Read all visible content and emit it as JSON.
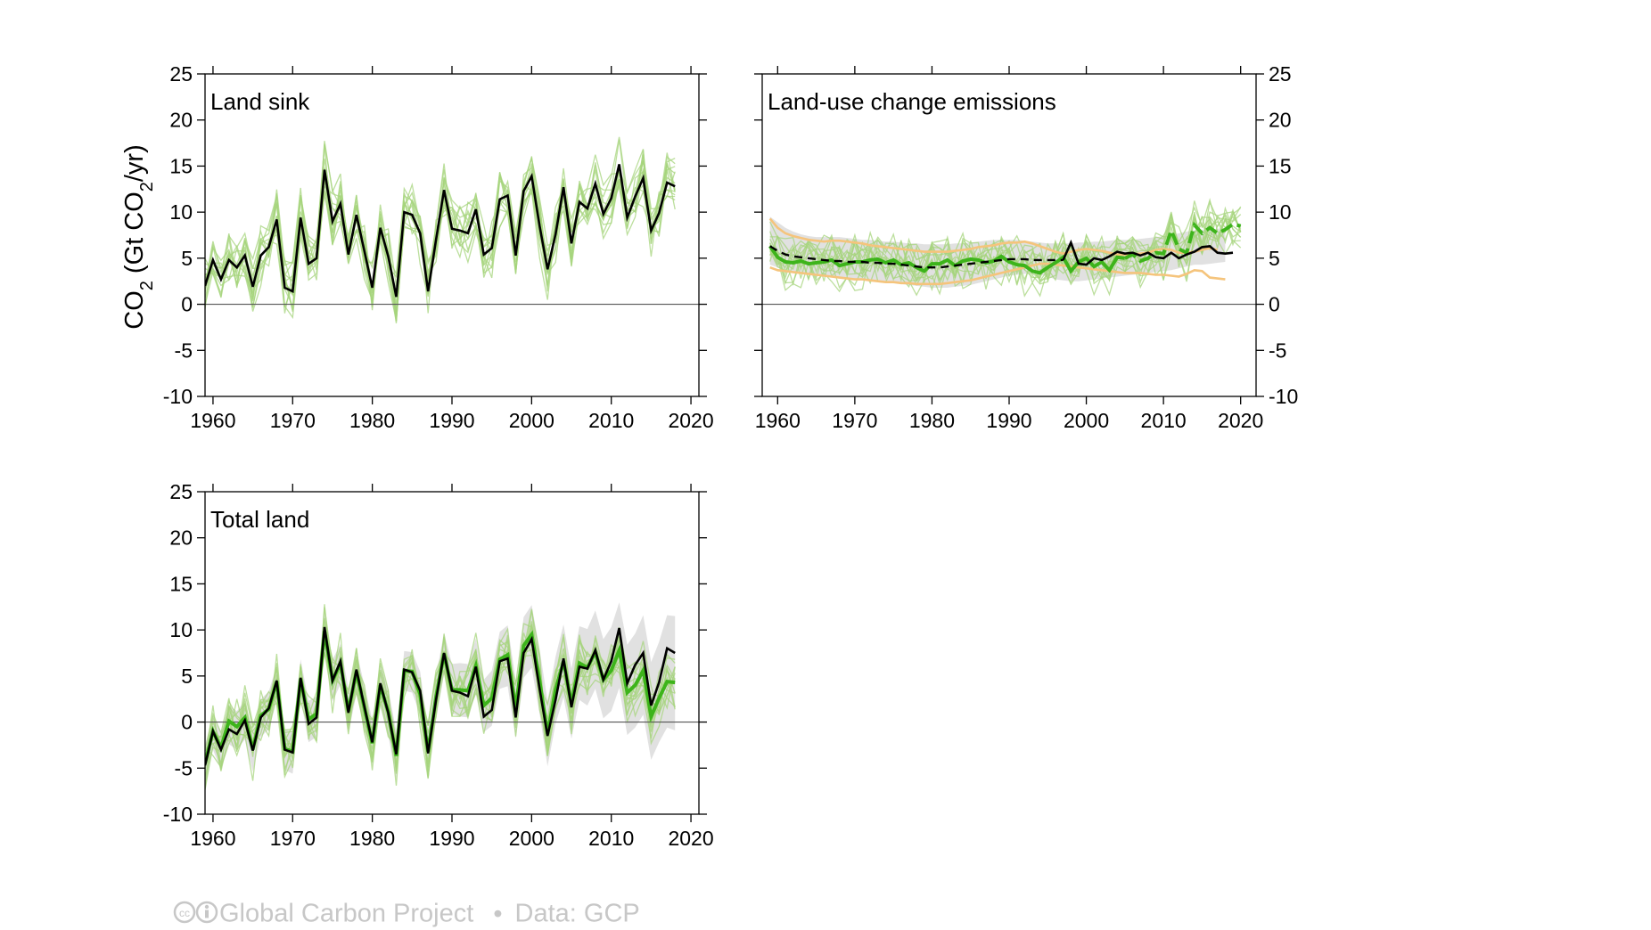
{
  "ylabel_parts": {
    "main": "CO",
    "sub": "2",
    "rest1": " (Gt CO",
    "sub2": "2",
    "rest2": "/yr)"
  },
  "footer": {
    "source": "Global Carbon Project",
    "separator": "•",
    "data": "Data: GCP"
  },
  "colors": {
    "mean": "#000000",
    "green_strong": "#3db41b",
    "green_light": "#a6d47c",
    "orange": "#f5c47c",
    "band": "#dcdcdc"
  },
  "chart_data": [
    {
      "id": "land-sink",
      "type": "line",
      "title": "Land sink",
      "ylim": [
        -10,
        25
      ],
      "xlim": [
        1959,
        2021
      ],
      "yticks": [
        -10,
        -5,
        0,
        5,
        10,
        15,
        20,
        25
      ],
      "xticks": [
        1960,
        1970,
        1980,
        1990,
        2000,
        2010,
        2020
      ],
      "yaxis_side": "left",
      "x_start": 1959,
      "series": [
        {
          "role": "mean",
          "values": [
            2.0,
            4.8,
            2.7,
            4.8,
            4.0,
            5.3,
            1.9,
            5.3,
            6.2,
            9.2,
            1.8,
            1.4,
            9.4,
            4.4,
            5.0,
            14.6,
            9.0,
            10.9,
            5.4,
            9.7,
            5.8,
            1.8,
            8.3,
            5.2,
            0.8,
            10.0,
            9.7,
            7.7,
            1.4,
            7.0,
            12.4,
            8.2,
            8.0,
            7.7,
            10.3,
            5.4,
            6.1,
            11.4,
            11.8,
            5.3,
            12.3,
            13.9,
            8.5,
            3.8,
            7.6,
            12.7,
            6.6,
            11.1,
            10.4,
            13.1,
            9.8,
            11.5,
            15.2,
            9.4,
            11.7,
            13.7,
            8.0,
            9.9,
            13.2,
            12.8
          ]
        }
      ]
    },
    {
      "id": "land-use-change",
      "type": "line",
      "title": "Land-use change emissions",
      "ylim": [
        -10,
        25
      ],
      "xlim": [
        1958,
        2022
      ],
      "yticks": [
        -10,
        -5,
        0,
        5,
        10,
        15,
        20,
        25
      ],
      "xticks": [
        1960,
        1970,
        1980,
        1990,
        2000,
        2010,
        2020
      ],
      "yaxis_side": "right",
      "x_start": 1959,
      "series": [
        {
          "role": "mean-dashed",
          "values": [
            6.3,
            5.8,
            5.4,
            5.2,
            5.1,
            5.0,
            4.9,
            4.8,
            4.7,
            4.7,
            4.6,
            4.6,
            4.6,
            4.5,
            4.5,
            4.4,
            4.4,
            4.3,
            4.2,
            4.1,
            4.0,
            4.0,
            4.0,
            4.1,
            4.2,
            4.3,
            4.4,
            4.5,
            4.6,
            4.7,
            4.8,
            4.9,
            4.9,
            4.9,
            4.8,
            4.8,
            4.8,
            4.8,
            4.8
          ]
        },
        {
          "role": "mean",
          "start": 1997,
          "values": [
            4.8,
            6.7,
            4.4,
            4.3,
            5.0,
            4.8,
            5.2,
            5.7,
            5.5,
            5.6,
            5.3,
            5.6,
            5.1,
            5.0,
            5.6,
            5.0,
            5.4,
            5.7,
            6.2,
            6.3,
            5.6,
            5.5,
            5.6
          ]
        },
        {
          "role": "green",
          "values": [
            6.3,
            5.1,
            4.6,
            4.5,
            4.7,
            4.4,
            4.5,
            4.6,
            4.8,
            4.2,
            4.4,
            4.6,
            4.6,
            4.8,
            4.9,
            4.5,
            4.8,
            4.3,
            4.5,
            4.0,
            3.6,
            4.4,
            4.4,
            4.8,
            4.2,
            4.7,
            4.9,
            4.8,
            4.5,
            4.7,
            5.2,
            4.6,
            4.3,
            4.2,
            3.6,
            3.4,
            4.0,
            4.5,
            5.1,
            3.6,
            4.6,
            5.0,
            4.1,
            4.6,
            3.7,
            5.1,
            5.0,
            5.4,
            4.7,
            5.0,
            5.6,
            5.5,
            8.0,
            6.0,
            5.6,
            8.6,
            7.7,
            8.3,
            7.7,
            8.1,
            8.7,
            8.5
          ]
        },
        {
          "role": "orange",
          "values": [
            9.3,
            8.3,
            7.7,
            7.4,
            7.2,
            7.0,
            6.9,
            6.8,
            6.9,
            6.9,
            6.8,
            6.7,
            6.6,
            6.4,
            6.3,
            6.2,
            6.1,
            6.0,
            5.9,
            5.8,
            5.7,
            5.7,
            5.7,
            5.7,
            5.8,
            5.9,
            6.0,
            6.2,
            6.3,
            6.4,
            6.6,
            6.7,
            6.7,
            6.8,
            6.6,
            6.3,
            6.0,
            5.7,
            5.5,
            5.7,
            5.9,
            6.0,
            5.9,
            5.8,
            5.6,
            5.4,
            5.4,
            5.4,
            5.5,
            5.6,
            5.9,
            6.0,
            5.9,
            5.6,
            5.6,
            5.7,
            5.9,
            6.1,
            5.9
          ]
        },
        {
          "role": "orange",
          "values": [
            4.0,
            3.7,
            3.6,
            3.5,
            3.4,
            3.3,
            3.2,
            3.1,
            3.0,
            2.9,
            2.8,
            2.7,
            2.7,
            2.6,
            2.5,
            2.4,
            2.4,
            2.3,
            2.3,
            2.2,
            2.2,
            2.2,
            2.2,
            2.3,
            2.4,
            2.5,
            2.6,
            2.8,
            3.0,
            3.2,
            3.4,
            3.6,
            3.8,
            4.0,
            4.2,
            4.4,
            4.4,
            4.3,
            4.2,
            4.1,
            4.0,
            3.9,
            3.8,
            3.7,
            3.6,
            3.5,
            3.4,
            3.4,
            3.4,
            3.3,
            3.2,
            3.2,
            3.1,
            3.0,
            3.3,
            3.7,
            3.6,
            2.9,
            2.8,
            2.7
          ]
        },
        {
          "role": "band",
          "upper": [
            9.5,
            8.9,
            8.3,
            7.9,
            7.6,
            7.4,
            7.3,
            7.3,
            7.3,
            7.3,
            7.2,
            7.1,
            7.0,
            7.0,
            6.9,
            6.8,
            6.8,
            6.7,
            6.6,
            6.6,
            6.5,
            6.5,
            6.5,
            6.5,
            6.6,
            6.6,
            6.7,
            6.8,
            6.9,
            7.0,
            7.0,
            7.0,
            7.0,
            6.9,
            6.8,
            6.7,
            6.6,
            6.6,
            6.6,
            6.6,
            6.7,
            6.7,
            6.8,
            6.8,
            6.9,
            7.0,
            7.0,
            7.0,
            7.1,
            7.2,
            7.3,
            7.4,
            7.5,
            7.7,
            7.9,
            8.0,
            8.1,
            8.1,
            8.2,
            8.3
          ],
          "lower": [
            4.3,
            4.0,
            3.8,
            3.6,
            3.5,
            3.3,
            3.2,
            3.1,
            3.0,
            2.9,
            2.8,
            2.7,
            2.7,
            2.6,
            2.5,
            2.4,
            2.3,
            2.2,
            2.1,
            2.0,
            1.9,
            1.8,
            1.8,
            1.8,
            1.9,
            2.0,
            2.1,
            2.3,
            2.5,
            2.7,
            2.9,
            3.1,
            3.2,
            3.3,
            3.3,
            3.2,
            3.0,
            2.7,
            2.6,
            2.5,
            2.5,
            2.6,
            2.7,
            2.8,
            2.9,
            3.0,
            3.1,
            3.2,
            3.3,
            3.4,
            3.5,
            3.6,
            3.7,
            3.9,
            4.1,
            4.3,
            4.3,
            4.4,
            4.5,
            4.6
          ]
        }
      ]
    },
    {
      "id": "total-land",
      "type": "line",
      "title": "Total land",
      "ylim": [
        -10,
        25
      ],
      "xlim": [
        1959,
        2021
      ],
      "yticks": [
        -10,
        -5,
        0,
        5,
        10,
        15,
        20,
        25
      ],
      "xticks": [
        1960,
        1970,
        1980,
        1990,
        2000,
        2010,
        2020
      ],
      "yaxis_side": "left",
      "x_start": 1959,
      "series": [
        {
          "role": "green",
          "values": [
            -4.5,
            -1.0,
            -2.8,
            0.1,
            -0.5,
            0.5,
            -3.0,
            0.7,
            1.4,
            4.4,
            -2.9,
            -3.2,
            4.7,
            0.3,
            0.9,
            9.9,
            4.5,
            6.4,
            1.2,
            5.5,
            1.6,
            -2.3,
            4.0,
            1.1,
            -3.7,
            5.6,
            5.5,
            3.0,
            -3.2,
            2.7,
            7.4,
            3.5,
            3.5,
            3.4,
            6.1,
            1.8,
            2.6,
            6.8,
            7.3,
            1.4,
            8.3,
            9.5,
            4.5,
            -1.3,
            3.5,
            6.6,
            2.0,
            6.4,
            5.9,
            7.6,
            4.6,
            5.6,
            7.8,
            3.2,
            4.0,
            5.6,
            0.6,
            2.6,
            4.4,
            4.3
          ]
        },
        {
          "role": "mean",
          "values": [
            -4.7,
            -1.0,
            -3.0,
            -0.8,
            -1.3,
            0.2,
            -3.1,
            0.5,
            1.5,
            4.5,
            -3.0,
            -3.3,
            4.8,
            -0.2,
            0.5,
            10.3,
            4.5,
            6.6,
            1.0,
            5.7,
            1.7,
            -2.2,
            4.2,
            1.0,
            -3.5,
            5.7,
            5.4,
            3.4,
            -3.4,
            2.4,
            7.5,
            3.4,
            3.2,
            2.8,
            6.0,
            0.6,
            1.3,
            6.6,
            6.9,
            0.5,
            7.5,
            9.0,
            3.6,
            -1.5,
            2.4,
            6.9,
            1.6,
            6.0,
            5.8,
            7.8,
            4.6,
            6.6,
            10.2,
            4.2,
            6.2,
            7.5,
            1.8,
            4.3,
            8.0,
            7.5
          ]
        },
        {
          "role": "band",
          "upper": [
            -2.5,
            0.5,
            -1.0,
            1.8,
            1.2,
            2.3,
            -1.0,
            2.5,
            3.3,
            6.2,
            -0.8,
            -1.0,
            6.8,
            2.3,
            2.8,
            12.0,
            6.8,
            8.5,
            3.6,
            7.8,
            4.0,
            0.2,
            6.3,
            3.6,
            -1.0,
            7.7,
            7.6,
            5.5,
            -0.8,
            5.0,
            9.7,
            6.3,
            6.4,
            6.3,
            9.1,
            4.6,
            5.6,
            9.8,
            10.5,
            4.5,
            11.4,
            12.7,
            7.9,
            2.3,
            7.1,
            10.6,
            5.8,
            10.4,
            10.1,
            12.1,
            9.0,
            10.3,
            13.0,
            8.4,
            9.6,
            11.6,
            6.5,
            8.7,
            11.6,
            11.5
          ],
          "lower": [
            -7.2,
            -3.0,
            -5.2,
            -2.4,
            -3.0,
            -1.9,
            -5.4,
            -1.6,
            -0.8,
            2.2,
            -5.2,
            -5.6,
            2.5,
            -2.2,
            -1.6,
            7.7,
            2.2,
            4.1,
            -1.2,
            3.0,
            -0.7,
            -4.7,
            1.6,
            -1.4,
            -6.2,
            3.4,
            3.2,
            0.8,
            -5.5,
            0.2,
            5.2,
            0.9,
            0.6,
            0.5,
            3.0,
            -1.1,
            -0.4,
            3.6,
            3.9,
            -1.8,
            4.8,
            5.9,
            0.9,
            -4.8,
            -0.2,
            2.7,
            -1.8,
            2.4,
            1.8,
            3.6,
            0.4,
            1.2,
            3.7,
            -1.4,
            -0.6,
            0.8,
            -4.1,
            -2.2,
            -0.6,
            -0.9
          ]
        }
      ]
    }
  ]
}
